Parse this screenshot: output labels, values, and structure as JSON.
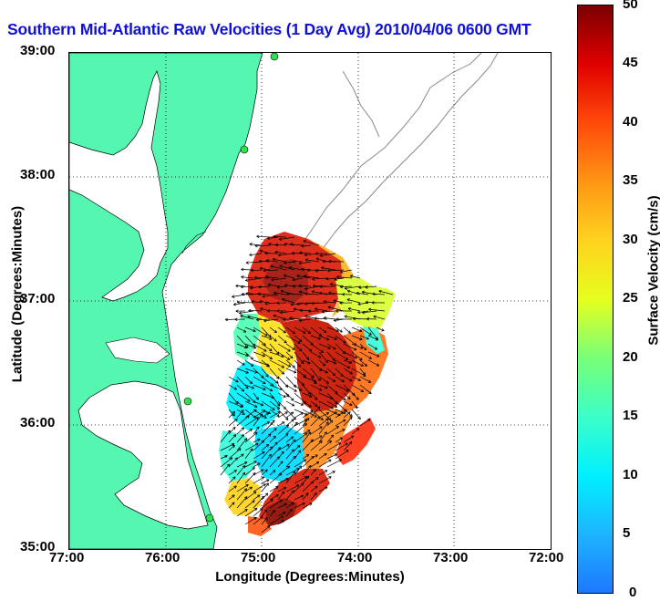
{
  "title": "Southern Mid-Atlantic Raw Velocities (1 Day Avg) 2010/04/06 0600 GMT",
  "x_axis": {
    "label": "Longitude (Degrees:Minutes)",
    "ticks": [
      "77:00",
      "76:00",
      "75:00",
      "74:00",
      "73:00",
      "72:00"
    ]
  },
  "y_axis": {
    "label": "Latitude (Degrees:Minutes)",
    "ticks": [
      "39:00",
      "38:00",
      "37:00",
      "36:00",
      "35:00"
    ]
  },
  "colorbar": {
    "label": "Surface Velocity (cm/s)",
    "ticks": [
      "50",
      "45",
      "40",
      "35",
      "30",
      "25",
      "20",
      "15",
      "10",
      "5",
      "0"
    ],
    "min": 0,
    "max": 50
  },
  "map": {
    "region_west_lon": -77.0,
    "region_east_lon": -72.0,
    "region_south_lat": 35.0,
    "region_north_lat": 39.0,
    "land_color": "#55f7b0",
    "bathymetry_color": "#888888",
    "grid": "dotted",
    "station_markers": "green circles"
  }
}
